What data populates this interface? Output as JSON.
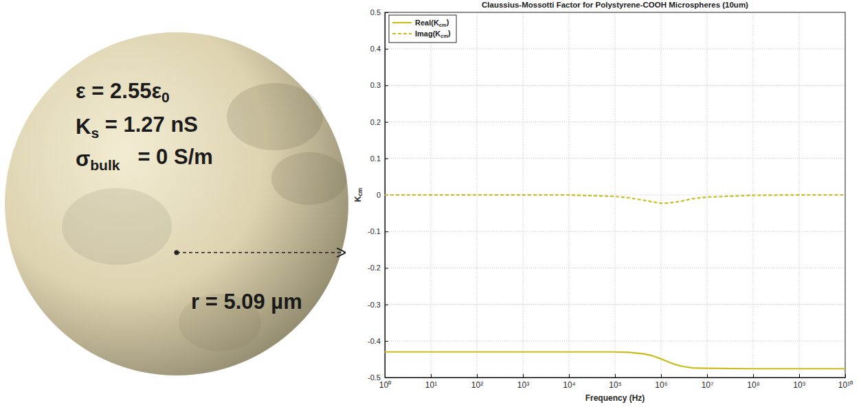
{
  "chart_data": {
    "type": "line",
    "title": "Claussius-Mossotti Factor for Polystyrene-COOH Microspheres (10um)",
    "xlabel": "Frequency (Hz)",
    "ylabel": [
      {
        "text": "K"
      },
      {
        "text": "cm",
        "sub": true
      }
    ],
    "annotations": [
      {
        "parts": [
          {
            "text": "ε = 2.55ε"
          },
          {
            "text": "0",
            "sub": true
          }
        ]
      },
      {
        "parts": [
          {
            "text": "K"
          },
          {
            "text": "s",
            "sub": true
          },
          {
            "text": " = 1.27 nS"
          }
        ]
      },
      {
        "parts": [
          {
            "text": "σ"
          },
          {
            "text": "bulk",
            "sub": true
          },
          {
            "text": "   = 0 S/m"
          }
        ]
      },
      {
        "parts": [
          {
            "text": "r = 5.09 µm"
          }
        ]
      }
    ],
    "x": [
      1,
      10,
      100,
      1000,
      10000,
      100000,
      200000,
      400000,
      600000,
      1000000,
      1500000,
      2000000,
      3000000,
      5000000,
      10000000,
      100000000,
      1000000000,
      10000000000
    ],
    "series": [
      {
        "name": [
          {
            "text": "Real(K"
          },
          {
            "text": "cm",
            "sub": true
          },
          {
            "text": ")"
          }
        ],
        "color": "#c9bc1c",
        "line_style": "solid",
        "values": [
          -0.43,
          -0.43,
          -0.43,
          -0.43,
          -0.43,
          -0.43,
          -0.431,
          -0.435,
          -0.439,
          -0.449,
          -0.458,
          -0.464,
          -0.47,
          -0.474,
          -0.475,
          -0.476,
          -0.476,
          -0.476
        ]
      },
      {
        "name": [
          {
            "text": "Imag(K"
          },
          {
            "text": "cm",
            "sub": true
          },
          {
            "text": ")"
          }
        ],
        "color": "#c9bc1c",
        "line_style": "dashed",
        "values": [
          0,
          0,
          0,
          0,
          0,
          -0.004,
          -0.008,
          -0.014,
          -0.018,
          -0.023,
          -0.022,
          -0.02,
          -0.016,
          -0.01,
          -0.006,
          -0.001,
          0,
          0
        ]
      }
    ],
    "log": "x",
    "xlim": [
      1,
      10000000000
    ],
    "xticks": [
      {
        "value": 1,
        "label": "10⁰"
      },
      {
        "value": 10,
        "label": "10¹"
      },
      {
        "value": 100,
        "label": "10²"
      },
      {
        "value": 1000,
        "label": "10³"
      },
      {
        "value": 10000,
        "label": "10⁴"
      },
      {
        "value": 100000,
        "label": "10⁵"
      },
      {
        "value": 1000000,
        "label": "10⁶"
      },
      {
        "value": 10000000,
        "label": "10⁷"
      },
      {
        "value": 100000000,
        "label": "10⁸"
      },
      {
        "value": 1000000000,
        "label": "10⁹"
      },
      {
        "value": 10000000000,
        "label": "10¹⁰"
      }
    ],
    "ylim": [
      -0.5,
      0.5
    ],
    "yticks": [
      -0.5,
      -0.4,
      -0.3,
      -0.2,
      -0.1,
      0,
      0.1,
      0.2,
      0.3,
      0.4,
      0.5
    ],
    "grid": true,
    "legend": "top-left"
  }
}
